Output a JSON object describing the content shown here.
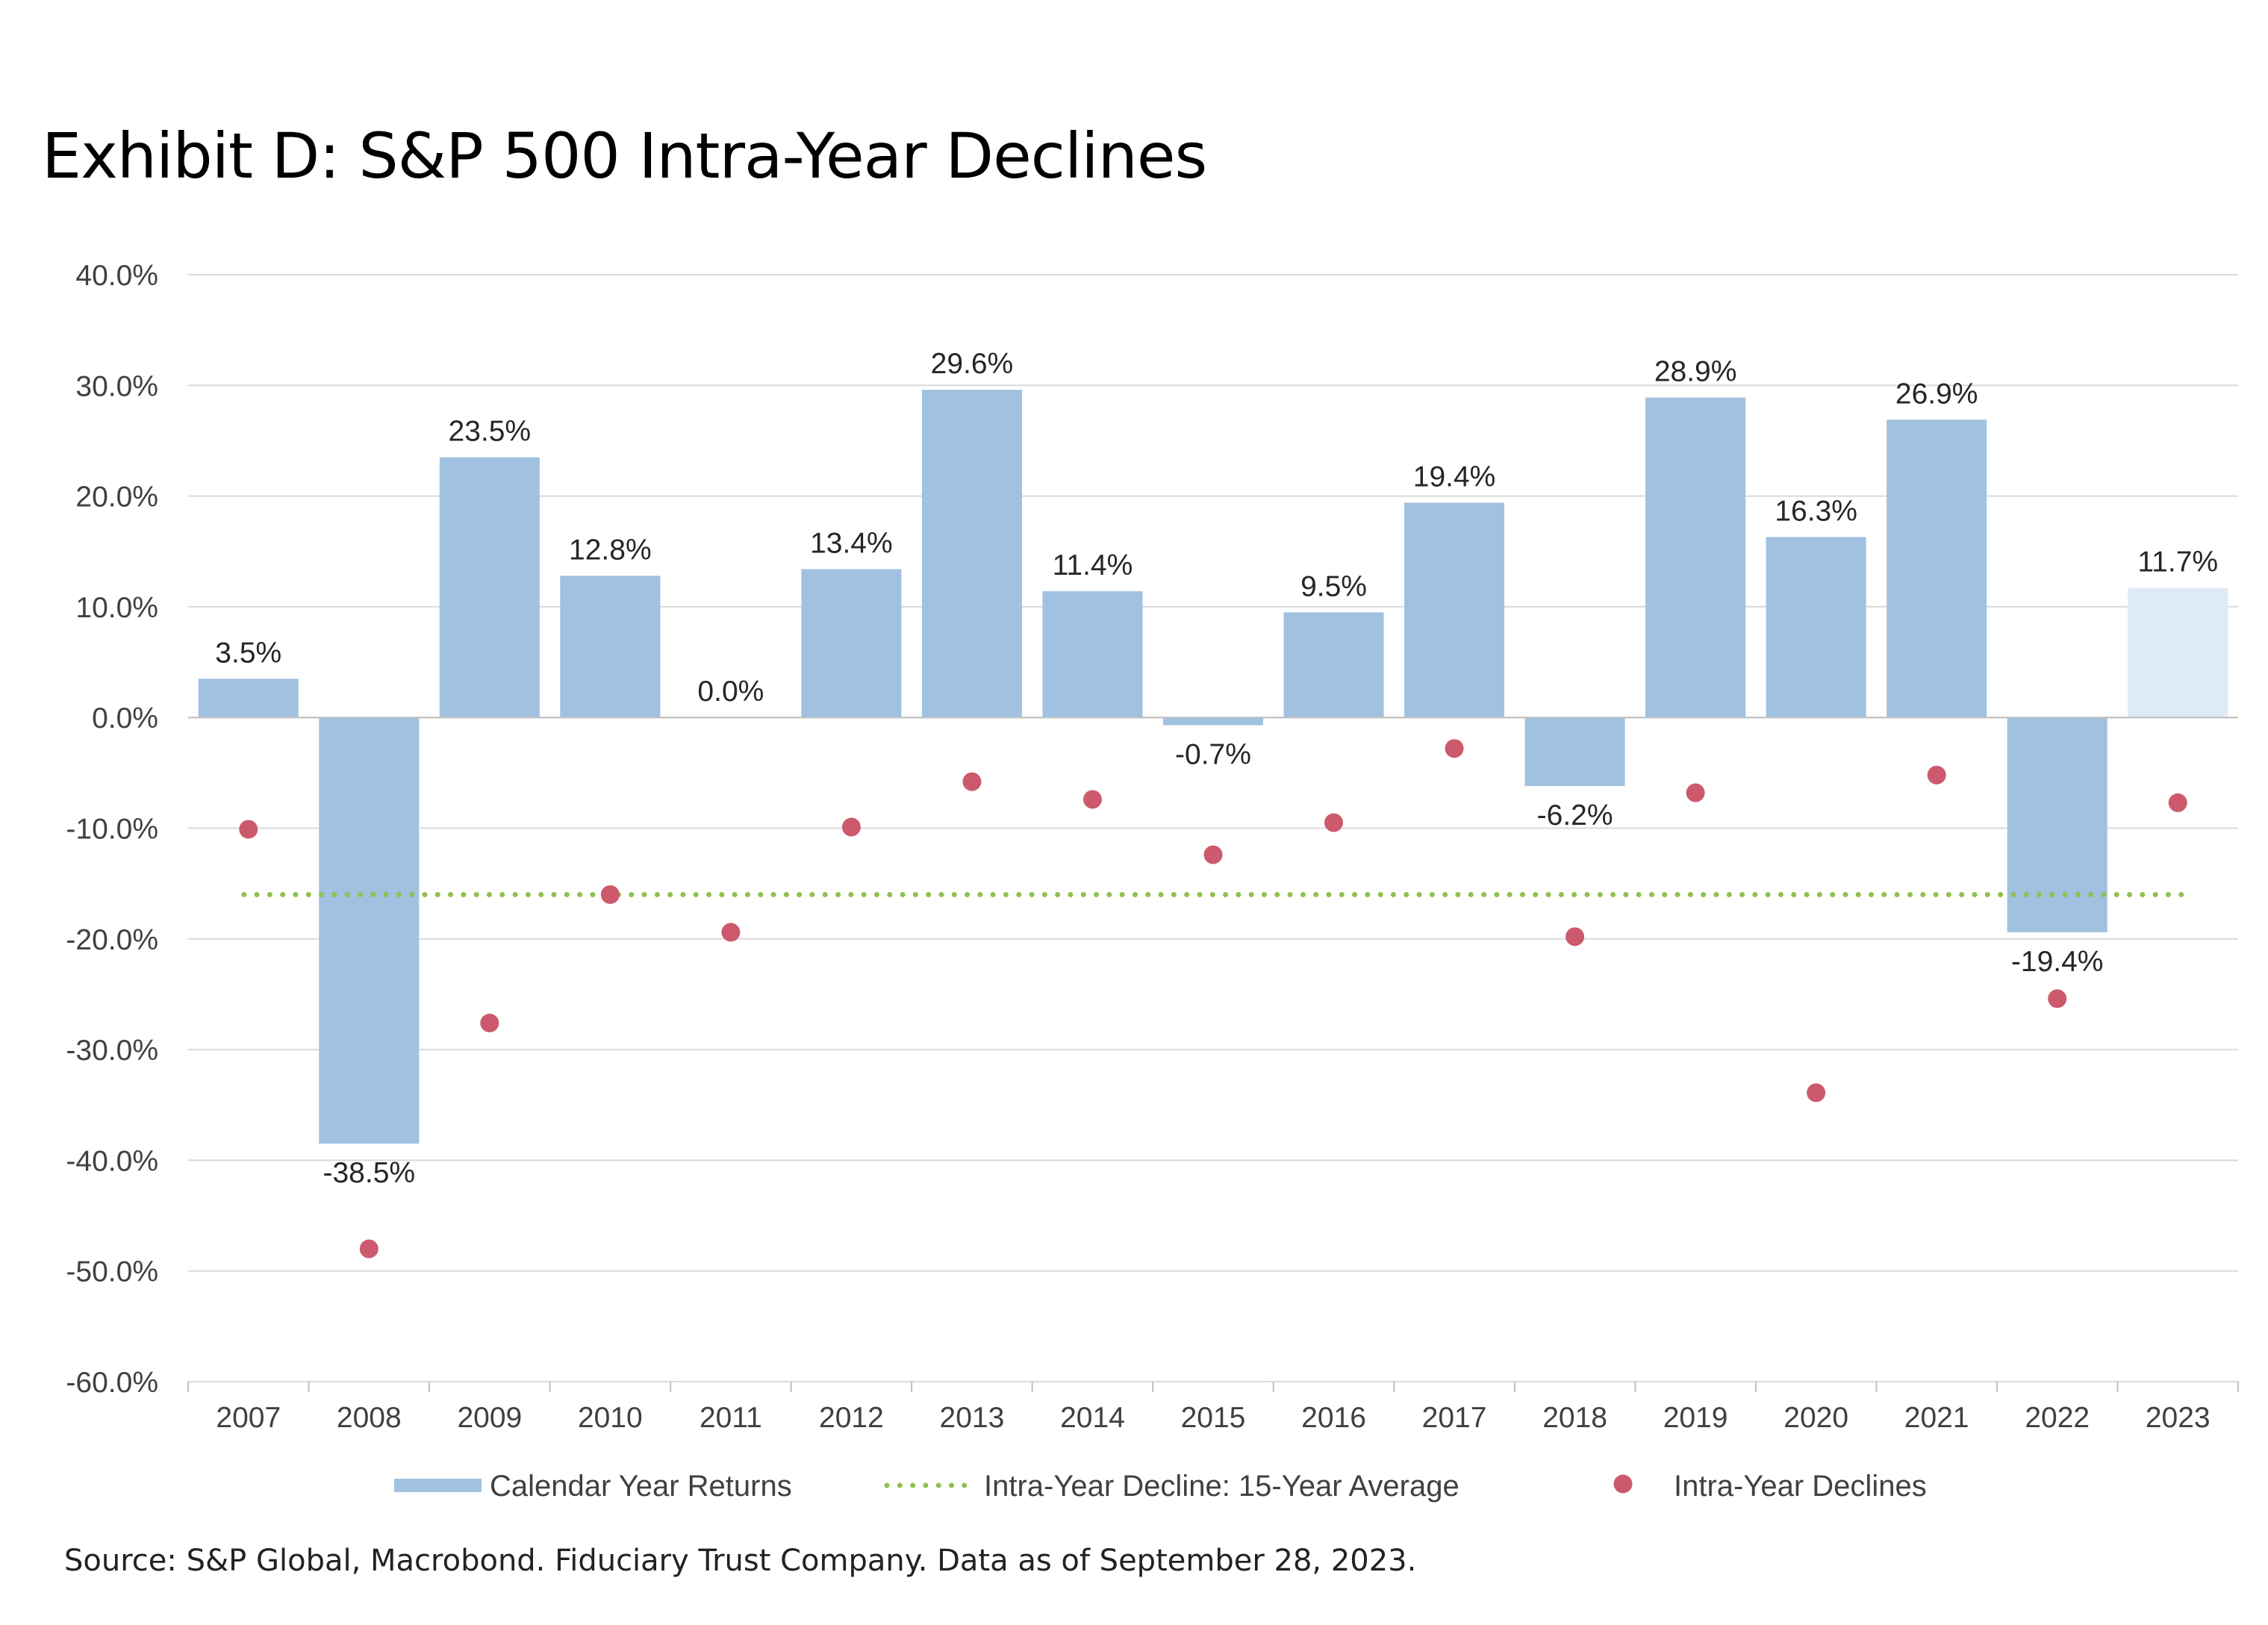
{
  "title": "Exhibit D: S&P 500 Intra-Year Declines",
  "source": "Source: S&P Global, Macrobond. Fiduciary Trust Company. Data as of September 28, 2023.",
  "colors": {
    "bar": "#a0c2e0",
    "bar_partial": "#deeaf5",
    "dot": "#cc5a6c",
    "avg_line": "#92c050",
    "grid": "#d9d9d9"
  },
  "chart_data": {
    "type": "bar",
    "categories": [
      "2007",
      "2008",
      "2009",
      "2010",
      "2011",
      "2012",
      "2013",
      "2014",
      "2015",
      "2016",
      "2017",
      "2018",
      "2019",
      "2020",
      "2021",
      "2022",
      "2023"
    ],
    "ylim": [
      -60,
      40
    ],
    "yticks": [
      "40.0%",
      "30.0%",
      "20.0%",
      "10.0%",
      "0.0%",
      "-10.0%",
      "-20.0%",
      "-30.0%",
      "-40.0%",
      "-50.0%",
      "-60.0%"
    ],
    "grid": true,
    "legend_position": "bottom",
    "series": [
      {
        "name": "Calendar Year Returns",
        "type": "bar",
        "values": [
          3.5,
          -38.5,
          23.5,
          12.8,
          0.0,
          13.4,
          29.6,
          11.4,
          -0.7,
          9.5,
          19.4,
          -6.2,
          28.9,
          16.3,
          26.9,
          -19.4,
          11.7
        ],
        "labels": [
          "3.5%",
          "-38.5%",
          "23.5%",
          "12.8%",
          "0.0%",
          "13.4%",
          "29.6%",
          "11.4%",
          "-0.7%",
          "9.5%",
          "19.4%",
          "-6.2%",
          "28.9%",
          "16.3%",
          "26.9%",
          "-19.4%",
          "11.7%"
        ]
      },
      {
        "name": "Intra-Year Decline: 15-Year Average",
        "type": "line",
        "value": -16.0
      },
      {
        "name": "Intra-Year Declines",
        "type": "scatter",
        "values": [
          -10.1,
          -48.0,
          -27.6,
          -16.0,
          -19.4,
          -9.9,
          -5.8,
          -7.4,
          -12.4,
          -9.5,
          -2.8,
          -19.8,
          -6.8,
          -33.9,
          -5.2,
          -25.4,
          -7.7
        ]
      }
    ]
  }
}
